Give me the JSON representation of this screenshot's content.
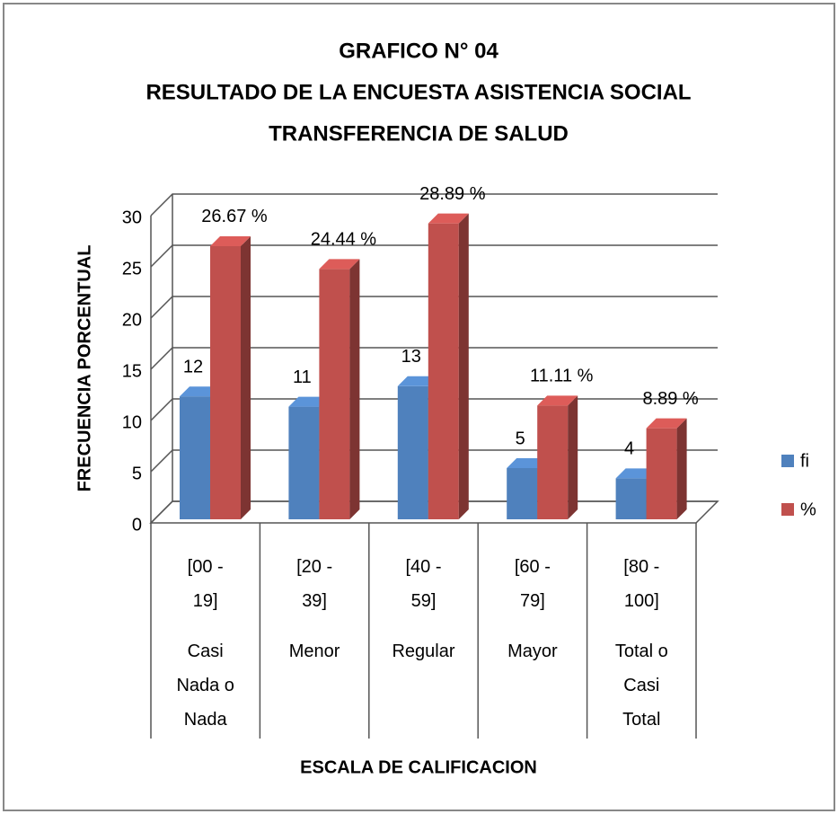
{
  "chart_data": {
    "type": "bar3d",
    "title": [
      "GRAFICO N° 04",
      "RESULTADO DE LA ENCUESTA ASISTENCIA SOCIAL",
      "TRANSFERENCIA DE SALUD"
    ],
    "categories": [
      "[00 - 19]",
      "[20 - 39]",
      "[40 - 59]",
      "[60 - 79]",
      "[80 - 100]"
    ],
    "category_names": [
      "Casi Nada o Nada",
      "Menor",
      "Regular",
      "Mayor",
      "Total o Casi Total"
    ],
    "series": [
      {
        "name": "fi",
        "color": "#4f81bd",
        "values": [
          12,
          11,
          13,
          5,
          4
        ]
      },
      {
        "name": "%",
        "color": "#c0504d",
        "values": [
          26.67,
          24.44,
          28.89,
          11.11,
          8.89
        ],
        "value_labels": [
          "26.67 %",
          "24.44 %",
          "28.89 %",
          "11.11 %",
          "8.89 %"
        ]
      }
    ],
    "ylim": [
      0,
      30
    ],
    "yticks": [
      0,
      5,
      10,
      15,
      20,
      25,
      30
    ],
    "ylabel": "FRECUENCIA PORCENTUAL",
    "xlabel": "ESCALA DE CALIFICACION",
    "grid": true,
    "legend": "right"
  }
}
